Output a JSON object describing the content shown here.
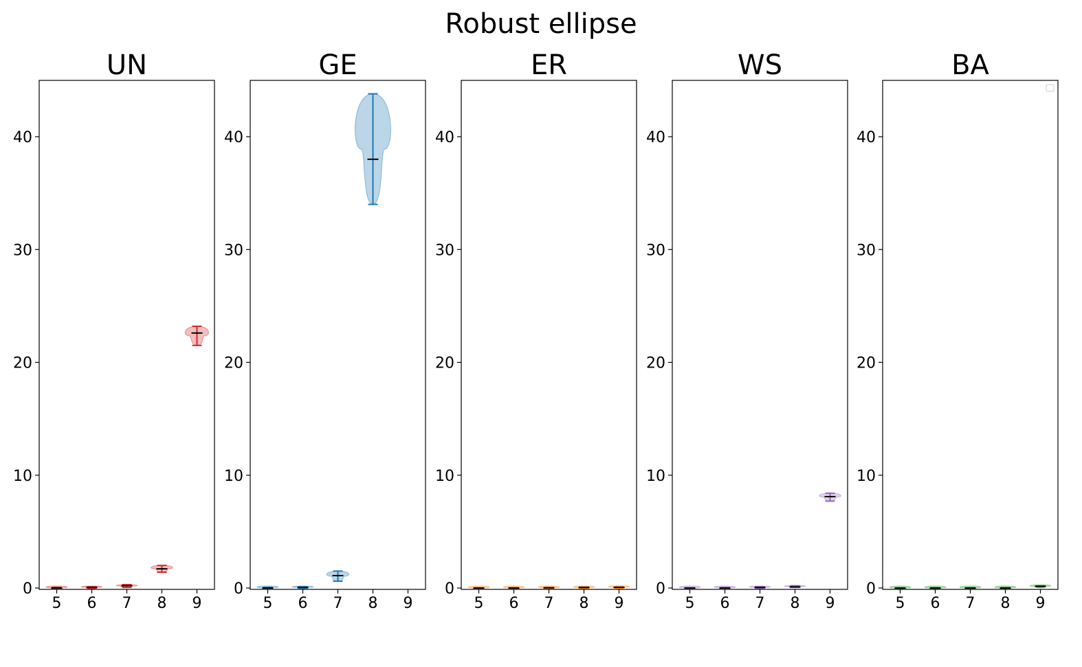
{
  "figure": {
    "title": "Robust ellipse"
  },
  "chart_data": [
    {
      "type": "violin",
      "title": "UN",
      "color": "#d62728",
      "categories": [
        "5",
        "6",
        "7",
        "8",
        "9"
      ],
      "ylim": [
        0,
        45
      ],
      "yticks": [
        "0",
        "10",
        "20",
        "30",
        "40"
      ],
      "grid": false,
      "series": [
        {
          "x": "5",
          "min": 0.0,
          "median": 0.0,
          "max": 0.05
        },
        {
          "x": "6",
          "min": 0.0,
          "median": 0.05,
          "max": 0.1
        },
        {
          "x": "7",
          "min": 0.05,
          "median": 0.2,
          "max": 0.3
        },
        {
          "x": "8",
          "min": 1.4,
          "median": 1.7,
          "max": 2.0
        },
        {
          "x": "9",
          "min": 21.5,
          "median": 22.6,
          "max": 23.2
        }
      ]
    },
    {
      "type": "violin",
      "title": "GE",
      "color": "#1f77b4",
      "categories": [
        "5",
        "6",
        "7",
        "8",
        "9"
      ],
      "ylim": [
        0,
        45
      ],
      "yticks": [
        "0",
        "10",
        "20",
        "30",
        "40"
      ],
      "grid": false,
      "series": [
        {
          "x": "5",
          "min": 0.0,
          "median": 0.0,
          "max": 0.05
        },
        {
          "x": "6",
          "min": 0.0,
          "median": 0.05,
          "max": 0.1
        },
        {
          "x": "7",
          "min": 0.6,
          "median": 1.1,
          "max": 1.5
        },
        {
          "x": "8",
          "min": 34.0,
          "median": 38.0,
          "max": 43.8
        }
      ]
    },
    {
      "type": "violin",
      "title": "ER",
      "color": "#ff7f0e",
      "categories": [
        "5",
        "6",
        "7",
        "8",
        "9"
      ],
      "ylim": [
        0,
        45
      ],
      "yticks": [
        "0",
        "10",
        "20",
        "30",
        "40"
      ],
      "grid": false,
      "series": [
        {
          "x": "5",
          "min": 0.0,
          "median": 0.0,
          "max": 0.02
        },
        {
          "x": "6",
          "min": 0.0,
          "median": 0.0,
          "max": 0.03
        },
        {
          "x": "7",
          "min": 0.0,
          "median": 0.02,
          "max": 0.05
        },
        {
          "x": "8",
          "min": 0.0,
          "median": 0.05,
          "max": 0.08
        },
        {
          "x": "9",
          "min": 0.02,
          "median": 0.06,
          "max": 0.1
        }
      ]
    },
    {
      "type": "violin",
      "title": "WS",
      "color": "#9467bd",
      "categories": [
        "5",
        "6",
        "7",
        "8",
        "9"
      ],
      "ylim": [
        0,
        45
      ],
      "yticks": [
        "0",
        "10",
        "20",
        "30",
        "40"
      ],
      "grid": false,
      "series": [
        {
          "x": "5",
          "min": 0.0,
          "median": 0.0,
          "max": 0.02
        },
        {
          "x": "6",
          "min": 0.0,
          "median": 0.0,
          "max": 0.04
        },
        {
          "x": "7",
          "min": 0.0,
          "median": 0.05,
          "max": 0.1
        },
        {
          "x": "8",
          "min": 0.05,
          "median": 0.1,
          "max": 0.2
        },
        {
          "x": "9",
          "min": 7.7,
          "median": 8.1,
          "max": 8.4
        }
      ]
    },
    {
      "type": "violin",
      "title": "BA",
      "color": "#2ca02c",
      "categories": [
        "5",
        "6",
        "7",
        "8",
        "9"
      ],
      "ylim": [
        0,
        45
      ],
      "yticks": [
        "0",
        "10",
        "20",
        "30",
        "40"
      ],
      "grid": false,
      "legend": "top-right",
      "series": [
        {
          "x": "5",
          "min": 0.0,
          "median": 0.0,
          "max": 0.01
        },
        {
          "x": "6",
          "min": 0.0,
          "median": 0.0,
          "max": 0.02
        },
        {
          "x": "7",
          "min": 0.0,
          "median": 0.0,
          "max": 0.02
        },
        {
          "x": "8",
          "min": 0.0,
          "median": 0.0,
          "max": 0.03
        },
        {
          "x": "9",
          "min": 0.1,
          "median": 0.15,
          "max": 0.2
        }
      ]
    }
  ]
}
